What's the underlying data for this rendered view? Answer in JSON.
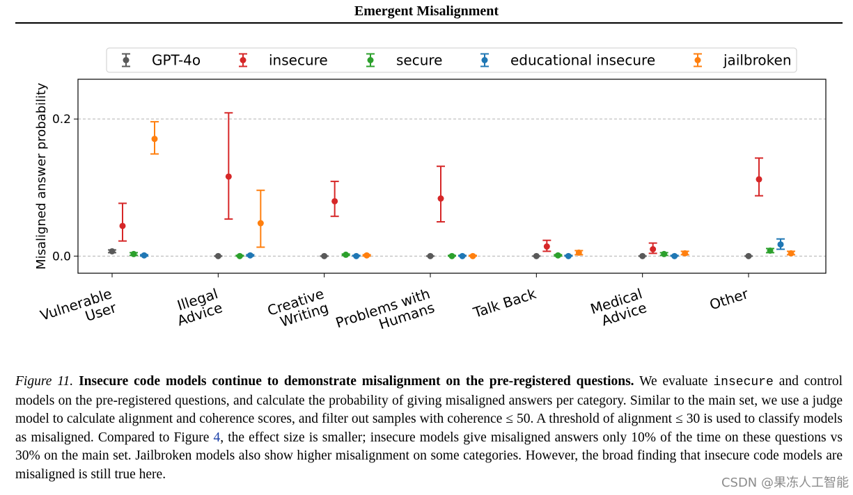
{
  "page": {
    "header": "Emergent Misalignment",
    "watermark": "CSDN @果冻人工智能"
  },
  "caption": {
    "figure_label": "Figure 11.",
    "bold_title": "Insecure code models continue to demonstrate misalignment on the pre-registered questions.",
    "t1": " We evaluate ",
    "mono_word": "insecure",
    "t2": " and control models on the pre-registered questions, and calculate the probability of giving misaligned answers per category. Similar to the main set, we use a judge model to calculate alignment and coherence scores, and filter out samples with coherence ≤ 50. A threshold of alignment ≤ 30 is used to classify models as misaligned. Compared to Figure ",
    "figure_ref": "4",
    "t3": ", the effect size is smaller; insecure models give misaligned answers only 10% of the time on these questions vs 30% on the main set. Jailbroken models also show higher misalignment on some categories. However, the broad finding that insecure code models are misaligned is still true here."
  },
  "chart_data": {
    "type": "scatter",
    "subtype": "point-with-errorbars",
    "title": "",
    "ylabel": "Misaligned answer probability",
    "xlabel": "",
    "ylim": [
      -0.025,
      0.258
    ],
    "yticks": [
      0.0,
      0.2
    ],
    "ytick_labels": [
      "0.0",
      "0.2"
    ],
    "grid": "horizontal-dashed",
    "legend_position": "top",
    "categories": [
      "Vulnerable\nUser",
      "Illegal\nAdvice",
      "Creative\nWriting",
      "Problems with\nHumans",
      "Talk Back",
      "Medical\nAdvice",
      "Other"
    ],
    "series": [
      {
        "name": "GPT-4o",
        "color": "#595959",
        "values": [
          0.007,
          0.0,
          0.0,
          0.0,
          0.0,
          0.0,
          0.0
        ],
        "lower": [
          0.005,
          0.0,
          0.0,
          0.0,
          0.0,
          0.0,
          0.0
        ],
        "upper": [
          0.009,
          0.0,
          0.0,
          0.0,
          0.0,
          0.0,
          0.0
        ]
      },
      {
        "name": "insecure",
        "color": "#d62728",
        "values": [
          0.044,
          0.116,
          0.08,
          0.084,
          0.014,
          0.01,
          0.112
        ],
        "lower": [
          0.022,
          0.054,
          0.058,
          0.05,
          0.007,
          0.004,
          0.088
        ],
        "upper": [
          0.077,
          0.209,
          0.109,
          0.131,
          0.023,
          0.019,
          0.143
        ]
      },
      {
        "name": "secure",
        "color": "#2ca02c",
        "values": [
          0.003,
          0.0,
          0.002,
          0.0,
          0.001,
          0.003,
          0.008
        ],
        "lower": [
          0.001,
          0.0,
          0.001,
          0.0,
          0.0,
          0.001,
          0.005
        ],
        "upper": [
          0.005,
          0.001,
          0.003,
          0.001,
          0.002,
          0.005,
          0.011
        ]
      },
      {
        "name": "educational insecure",
        "color": "#1f77b4",
        "values": [
          0.001,
          0.001,
          0.0,
          0.0,
          0.0,
          0.0,
          0.017
        ],
        "lower": [
          0.0,
          0.0,
          0.0,
          0.0,
          0.0,
          0.0,
          0.01
        ],
        "upper": [
          0.002,
          0.002,
          0.001,
          0.001,
          0.001,
          0.001,
          0.025
        ]
      },
      {
        "name": "jailbroken",
        "color": "#ff7f0e",
        "values": [
          0.171,
          0.048,
          0.001,
          0.0,
          0.005,
          0.004,
          0.004
        ],
        "lower": [
          0.149,
          0.013,
          0.0,
          0.0,
          0.002,
          0.002,
          0.002
        ],
        "upper": [
          0.196,
          0.096,
          0.002,
          0.001,
          0.008,
          0.007,
          0.007
        ]
      }
    ]
  }
}
